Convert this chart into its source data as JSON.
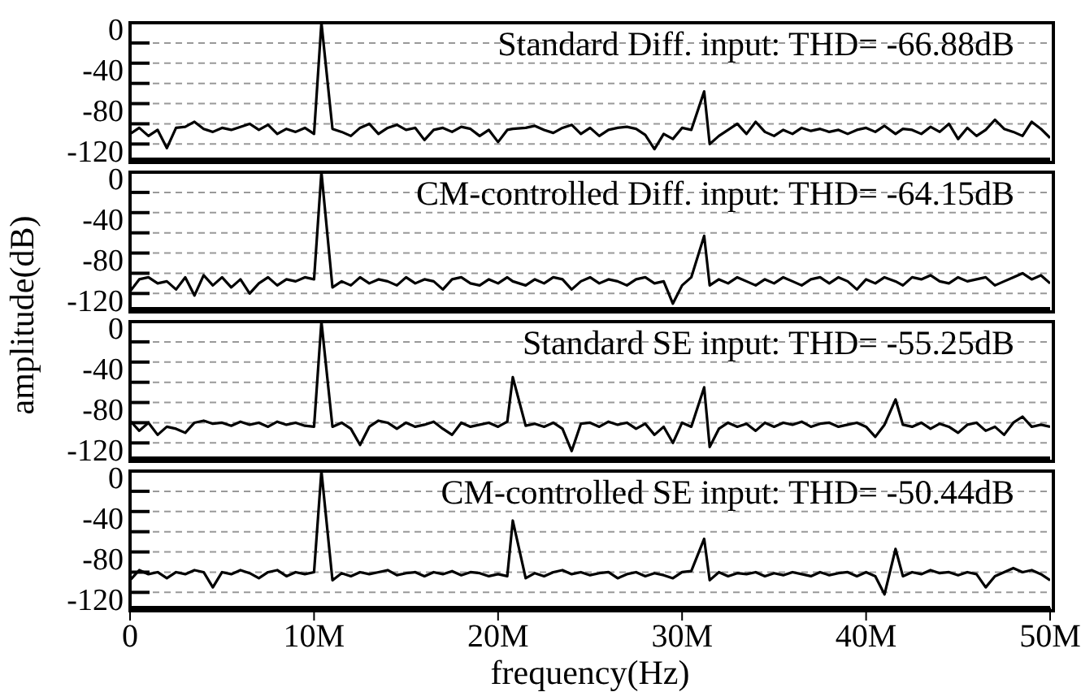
{
  "chart_data": [
    {
      "type": "line",
      "annotations": [
        "Standard Diff. input: THD= -66.88dB"
      ],
      "tick_labels": "y",
      "grid": "y",
      "marker": "none",
      "line_style": "solid",
      "xlim": [
        0,
        50000000
      ],
      "ylim": [
        -135,
        0
      ],
      "yticks": [
        0,
        {
          "value": -20,
          "label": null
        },
        -40,
        {
          "value": -60,
          "label": null
        },
        -80,
        {
          "value": -100,
          "label": null
        },
        -120
      ],
      "x": [
        0,
        500000,
        1000000,
        1500000,
        2000000,
        2500000,
        3000000,
        3500000,
        4000000,
        4500000,
        5000000,
        5500000,
        6000000,
        6500000,
        7000000,
        7500000,
        8000000,
        8500000,
        9000000,
        9500000,
        10000000,
        10400000,
        11000000,
        11500000,
        12000000,
        12500000,
        13000000,
        13500000,
        14000000,
        14500000,
        15000000,
        15500000,
        16000000,
        16500000,
        17000000,
        17500000,
        18000000,
        18500000,
        19000000,
        19500000,
        20000000,
        20500000,
        20800000,
        21500000,
        22000000,
        22500000,
        23000000,
        23500000,
        24000000,
        24500000,
        25000000,
        25500000,
        26000000,
        26500000,
        27000000,
        27500000,
        28000000,
        28500000,
        29000000,
        29500000,
        30000000,
        30500000,
        31200000,
        31500000,
        32000000,
        32500000,
        33000000,
        33500000,
        34000000,
        34500000,
        35000000,
        35500000,
        36000000,
        36500000,
        37000000,
        37500000,
        38000000,
        38500000,
        39000000,
        39500000,
        40000000,
        40500000,
        41000000,
        41600000,
        42000000,
        42500000,
        43000000,
        43500000,
        44000000,
        44500000,
        45000000,
        45500000,
        46000000,
        46500000,
        47000000,
        47500000,
        48000000,
        48500000,
        49000000,
        49500000,
        50000000
      ],
      "series": [
        {
          "color": "#000000",
          "values": [
            -110,
            -104,
            -112,
            -106,
            -124,
            -104,
            -103,
            -98,
            -105,
            -108,
            -104,
            -106,
            -103,
            -100,
            -106,
            -101,
            -110,
            -105,
            -108,
            -104,
            -110,
            0,
            -105,
            -108,
            -112,
            -104,
            -100,
            -110,
            -104,
            -101,
            -106,
            -104,
            -116,
            -106,
            -104,
            -108,
            -103,
            -105,
            -112,
            -106,
            -118,
            -106,
            -105,
            -104,
            -102,
            -106,
            -109,
            -104,
            -101,
            -110,
            -104,
            -112,
            -106,
            -104,
            -103,
            -105,
            -111,
            -125,
            -110,
            -115,
            -104,
            -106,
            -68,
            -120,
            -112,
            -106,
            -100,
            -110,
            -98,
            -108,
            -112,
            -106,
            -110,
            -104,
            -107,
            -105,
            -108,
            -106,
            -110,
            -106,
            -104,
            -108,
            -102,
            -110,
            -105,
            -106,
            -110,
            -103,
            -108,
            -100,
            -115,
            -104,
            -112,
            -106,
            -96,
            -105,
            -108,
            -112,
            -98,
            -105,
            -114
          ]
        }
      ]
    },
    {
      "type": "line",
      "annotations": [
        "CM-controlled Diff. input: THD= -64.15dB"
      ],
      "ylabel": "amplitude(dB)",
      "tick_labels": "y",
      "grid": "y",
      "marker": "none",
      "line_style": "solid",
      "xlim": [
        0,
        50000000
      ],
      "ylim": [
        -135,
        0
      ],
      "yticks": [
        0,
        {
          "value": -20,
          "label": null
        },
        -40,
        {
          "value": -60,
          "label": null
        },
        -80,
        {
          "value": -100,
          "label": null
        },
        -120
      ],
      "x": [
        0,
        500000,
        1000000,
        1500000,
        2000000,
        2500000,
        3000000,
        3500000,
        4000000,
        4500000,
        5000000,
        5500000,
        6000000,
        6500000,
        7000000,
        7500000,
        8000000,
        8500000,
        9000000,
        9500000,
        10000000,
        10400000,
        11000000,
        11500000,
        12000000,
        12500000,
        13000000,
        13500000,
        14000000,
        14500000,
        15000000,
        15500000,
        16000000,
        16500000,
        17000000,
        17500000,
        18000000,
        18500000,
        19000000,
        19500000,
        20000000,
        20500000,
        20800000,
        21500000,
        22000000,
        22500000,
        23000000,
        23500000,
        24000000,
        24500000,
        25000000,
        25500000,
        26000000,
        26500000,
        27000000,
        27500000,
        28000000,
        28500000,
        29000000,
        29500000,
        30000000,
        30500000,
        31200000,
        31500000,
        32000000,
        32500000,
        33000000,
        33500000,
        34000000,
        34500000,
        35000000,
        35500000,
        36000000,
        36500000,
        37000000,
        37500000,
        38000000,
        38500000,
        39000000,
        39500000,
        40000000,
        40500000,
        41000000,
        41600000,
        42000000,
        42500000,
        43000000,
        43500000,
        44000000,
        44500000,
        45000000,
        45500000,
        46000000,
        46500000,
        47000000,
        47500000,
        48000000,
        48500000,
        49000000,
        49500000,
        50000000
      ],
      "series": [
        {
          "color": "#000000",
          "values": [
            -118,
            -106,
            -104,
            -110,
            -108,
            -116,
            -104,
            -122,
            -102,
            -112,
            -104,
            -114,
            -106,
            -120,
            -110,
            -104,
            -112,
            -106,
            -108,
            -104,
            -106,
            0,
            -114,
            -108,
            -112,
            -104,
            -110,
            -106,
            -108,
            -112,
            -104,
            -110,
            -106,
            -108,
            -116,
            -106,
            -104,
            -110,
            -112,
            -106,
            -110,
            -104,
            -108,
            -112,
            -106,
            -110,
            -104,
            -106,
            -116,
            -108,
            -104,
            -110,
            -106,
            -108,
            -112,
            -106,
            -104,
            -110,
            -108,
            -130,
            -112,
            -104,
            -63,
            -112,
            -106,
            -110,
            -104,
            -108,
            -112,
            -106,
            -110,
            -104,
            -108,
            -112,
            -106,
            -104,
            -110,
            -104,
            -108,
            -116,
            -106,
            -110,
            -104,
            -108,
            -112,
            -104,
            -106,
            -102,
            -108,
            -110,
            -104,
            -108,
            -106,
            -104,
            -112,
            -108,
            -104,
            -100,
            -106,
            -102,
            -110
          ]
        }
      ]
    },
    {
      "type": "line",
      "annotations": [
        "Standard SE input: THD= -55.25dB"
      ],
      "tick_labels": "y",
      "grid": "y",
      "marker": "none",
      "line_style": "solid",
      "xlim": [
        0,
        50000000
      ],
      "ylim": [
        -135,
        0
      ],
      "yticks": [
        0,
        {
          "value": -20,
          "label": null
        },
        -40,
        {
          "value": -60,
          "label": null
        },
        -80,
        {
          "value": -100,
          "label": null
        },
        -120
      ],
      "x": [
        0,
        500000,
        1000000,
        1500000,
        2000000,
        2500000,
        3000000,
        3500000,
        4000000,
        4500000,
        5000000,
        5500000,
        6000000,
        6500000,
        7000000,
        7500000,
        8000000,
        8500000,
        9000000,
        9500000,
        10000000,
        10400000,
        11000000,
        11500000,
        12000000,
        12500000,
        13000000,
        13500000,
        14000000,
        14500000,
        15000000,
        15500000,
        16000000,
        16500000,
        17000000,
        17500000,
        18000000,
        18500000,
        19000000,
        19500000,
        20000000,
        20500000,
        20800000,
        21500000,
        22000000,
        22500000,
        23000000,
        23500000,
        24000000,
        24500000,
        25000000,
        25500000,
        26000000,
        26500000,
        27000000,
        27500000,
        28000000,
        28500000,
        29000000,
        29500000,
        30000000,
        30500000,
        31200000,
        31500000,
        32000000,
        32500000,
        33000000,
        33500000,
        34000000,
        34500000,
        35000000,
        35500000,
        36000000,
        36500000,
        37000000,
        37500000,
        38000000,
        38500000,
        39000000,
        39500000,
        40000000,
        40500000,
        41000000,
        41600000,
        42000000,
        42500000,
        43000000,
        43500000,
        44000000,
        44500000,
        45000000,
        45500000,
        46000000,
        46500000,
        47000000,
        47500000,
        48000000,
        48500000,
        49000000,
        49500000,
        50000000
      ],
      "series": [
        {
          "color": "#000000",
          "values": [
            -98,
            -108,
            -100,
            -112,
            -104,
            -106,
            -110,
            -100,
            -98,
            -101,
            -100,
            -103,
            -99,
            -102,
            -100,
            -104,
            -99,
            -102,
            -100,
            -103,
            -104,
            0,
            -104,
            -100,
            -106,
            -122,
            -104,
            -98,
            -100,
            -106,
            -100,
            -104,
            -102,
            -99,
            -106,
            -112,
            -100,
            -104,
            -102,
            -100,
            -104,
            -99,
            -55,
            -103,
            -101,
            -104,
            -100,
            -106,
            -128,
            -101,
            -100,
            -104,
            -99,
            -102,
            -100,
            -106,
            -101,
            -112,
            -104,
            -120,
            -100,
            -104,
            -65,
            -124,
            -106,
            -100,
            -104,
            -101,
            -108,
            -100,
            -104,
            -100,
            -102,
            -99,
            -104,
            -101,
            -100,
            -104,
            -102,
            -100,
            -104,
            -114,
            -102,
            -77,
            -102,
            -104,
            -100,
            -106,
            -101,
            -104,
            -110,
            -102,
            -100,
            -108,
            -104,
            -112,
            -100,
            -94,
            -104,
            -102,
            -104
          ]
        }
      ]
    },
    {
      "type": "line",
      "annotations": [
        "CM-controlled SE input: THD= -50.44dB"
      ],
      "xlabel": "frequency(Hz)",
      "grid": "y",
      "marker": "none",
      "line_style": "solid",
      "xlim": [
        0,
        50000000
      ],
      "xticks": [
        0,
        {
          "value": 10000000,
          "label": "10M"
        },
        {
          "value": 20000000,
          "label": "20M"
        },
        {
          "value": 30000000,
          "label": "30M"
        },
        {
          "value": 40000000,
          "label": "40M"
        },
        {
          "value": 50000000,
          "label": "50M"
        }
      ],
      "ylim": [
        -135,
        0
      ],
      "yticks": [
        0,
        {
          "value": -20,
          "label": null
        },
        -40,
        {
          "value": -60,
          "label": null
        },
        -80,
        {
          "value": -100,
          "label": null
        },
        -120
      ],
      "x": [
        0,
        500000,
        1000000,
        1500000,
        2000000,
        2500000,
        3000000,
        3500000,
        4000000,
        4500000,
        5000000,
        5500000,
        6000000,
        6500000,
        7000000,
        7500000,
        8000000,
        8500000,
        9000000,
        9500000,
        10000000,
        10400000,
        11000000,
        11500000,
        12000000,
        12500000,
        13000000,
        13500000,
        14000000,
        14500000,
        15000000,
        15500000,
        16000000,
        16500000,
        17000000,
        17500000,
        18000000,
        18500000,
        19000000,
        19500000,
        20000000,
        20500000,
        20800000,
        21500000,
        22000000,
        22500000,
        23000000,
        23500000,
        24000000,
        24500000,
        25000000,
        25500000,
        26000000,
        26500000,
        27000000,
        27500000,
        28000000,
        28500000,
        29000000,
        29500000,
        30000000,
        30500000,
        31200000,
        31500000,
        32000000,
        32500000,
        33000000,
        33500000,
        34000000,
        34500000,
        35000000,
        35500000,
        36000000,
        36500000,
        37000000,
        37500000,
        38000000,
        38500000,
        39000000,
        39500000,
        40000000,
        40500000,
        41000000,
        41600000,
        42000000,
        42500000,
        43000000,
        43500000,
        44000000,
        44500000,
        45000000,
        45500000,
        46000000,
        46500000,
        47000000,
        47500000,
        48000000,
        48500000,
        49000000,
        49500000,
        50000000
      ],
      "series": [
        {
          "color": "#000000",
          "values": [
            -108,
            -98,
            -102,
            -100,
            -106,
            -100,
            -102,
            -98,
            -100,
            -115,
            -100,
            -102,
            -98,
            -101,
            -106,
            -100,
            -98,
            -104,
            -100,
            -102,
            -100,
            0,
            -108,
            -101,
            -104,
            -100,
            -102,
            -100,
            -98,
            -103,
            -101,
            -100,
            -104,
            -100,
            -102,
            -99,
            -103,
            -100,
            -101,
            -104,
            -102,
            -104,
            -49,
            -106,
            -101,
            -104,
            -100,
            -98,
            -102,
            -100,
            -103,
            -101,
            -100,
            -106,
            -102,
            -100,
            -104,
            -101,
            -103,
            -106,
            -100,
            -99,
            -67,
            -108,
            -100,
            -104,
            -101,
            -102,
            -100,
            -104,
            -101,
            -103,
            -100,
            -102,
            -104,
            -100,
            -103,
            -101,
            -100,
            -104,
            -100,
            -104,
            -122,
            -77,
            -104,
            -100,
            -102,
            -98,
            -101,
            -100,
            -103,
            -100,
            -102,
            -115,
            -104,
            -100,
            -96,
            -100,
            -98,
            -102,
            -108
          ]
        }
      ]
    }
  ]
}
